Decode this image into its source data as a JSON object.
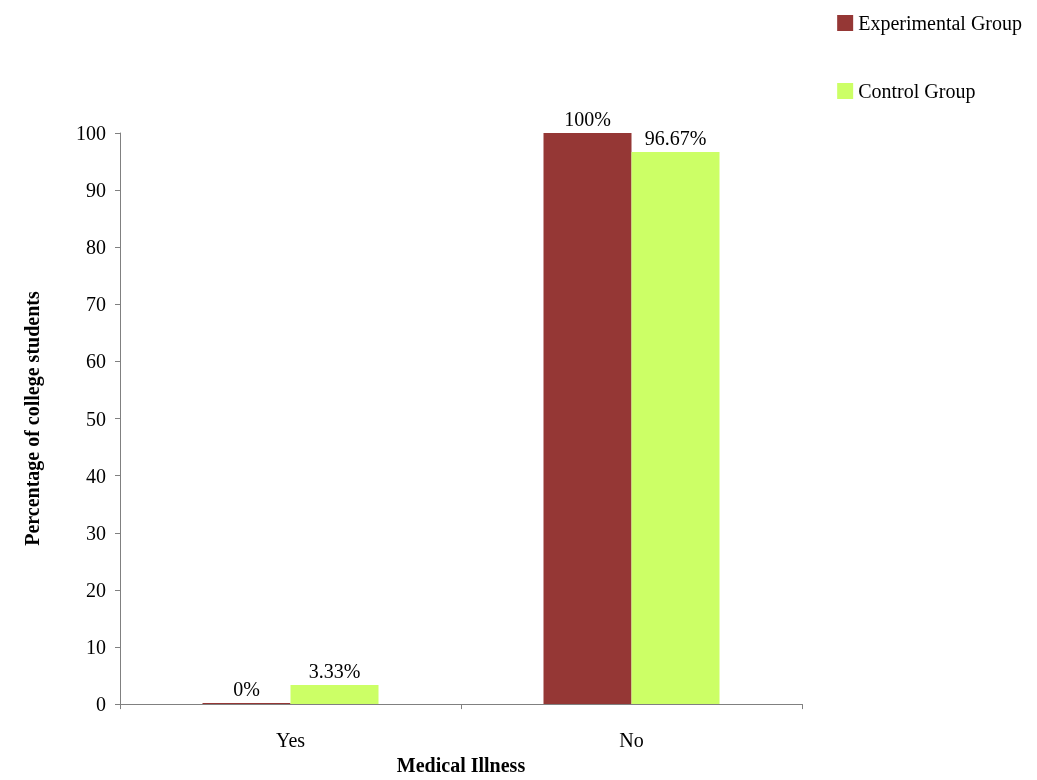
{
  "chart_data": {
    "type": "bar",
    "xlabel": "Medical Illness",
    "ylabel": "Percentage of college students",
    "categories": [
      "Yes",
      "No"
    ],
    "series": [
      {
        "name": "Experimental Group",
        "color": "#953735",
        "values": [
          0,
          100
        ],
        "value_labels": [
          "0%",
          "100%"
        ]
      },
      {
        "name": "Control Group",
        "color": "#ccff66",
        "values": [
          3.33,
          96.67
        ],
        "value_labels": [
          "3.33%",
          "96.67%"
        ]
      }
    ],
    "ylim": [
      0,
      100
    ],
    "yticks": [
      0,
      10,
      20,
      30,
      40,
      50,
      60,
      70,
      80,
      90,
      100
    ],
    "grid": false,
    "legend": "top right"
  }
}
